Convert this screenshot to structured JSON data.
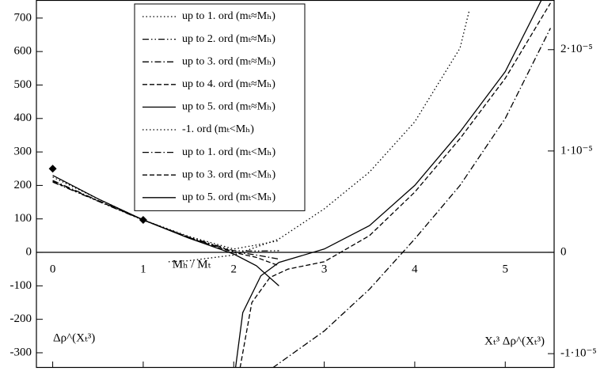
{
  "chart_data": {
    "type": "line",
    "xlim": [
      -0.18,
      5.54
    ],
    "ylim": [
      -345,
      754
    ],
    "xticks": [
      0,
      1,
      2,
      3,
      4,
      5
    ],
    "yticks": [
      -300,
      -200,
      -100,
      0,
      100,
      200,
      300,
      400,
      500,
      600,
      700
    ],
    "y2lim": [
      -1.14e-05,
      2.49e-05
    ],
    "y2ticks": [
      {
        "value": -1e-05,
        "label": "-1·10⁻⁵"
      },
      0,
      {
        "value": 1e-05,
        "label": "1·10⁻⁵"
      },
      {
        "value": 2e-05,
        "label": "2·10⁻⁵"
      }
    ],
    "annotations": [
      "Mₕ / Mₜ",
      "Δρ^(Xₜ³)",
      "Xₜ³ Δρ^(Xₜ³)"
    ],
    "legend": "upper-center",
    "series": [
      {
        "name": "up to 1. ord (mₜ≈Mₕ)",
        "color": "#000000",
        "dash": "dotted",
        "x": [
          0,
          0.5,
          1,
          1.5,
          2,
          2.25,
          2.5
        ],
        "values": [
          225,
          160,
          97,
          48,
          10,
          22,
          35
        ]
      },
      {
        "name": "up to 2. ord (mₜ≈Mₕ)",
        "color": "#000000",
        "dash": "dash-dot-dot",
        "x": [
          0,
          0.5,
          1,
          1.5,
          2,
          2.25,
          2.5
        ],
        "values": [
          210,
          153,
          96,
          46,
          5,
          4,
          5
        ]
      },
      {
        "name": "up to 3. ord (mₜ≈Mₕ)",
        "color": "#000000",
        "dash": "dash-dot",
        "x": [
          0,
          0.5,
          1,
          1.5,
          2,
          2.25,
          2.5
        ],
        "values": [
          215,
          155,
          97,
          45,
          2,
          -8,
          -20
        ]
      },
      {
        "name": "up to 4. ord (mₜ≈Mₕ)",
        "color": "#000000",
        "dash": "dashed",
        "x": [
          0,
          0.5,
          1,
          1.5,
          2,
          2.25,
          2.5
        ],
        "values": [
          212,
          154,
          97,
          44,
          0,
          -15,
          -40
        ]
      },
      {
        "name": "up to 5. ord (mₜ≈Mₕ)",
        "color": "#000000",
        "dash": "solid",
        "x": [
          0,
          0.5,
          1,
          1.5,
          2,
          2.25,
          2.5
        ],
        "values": [
          230,
          160,
          97,
          43,
          -5,
          -40,
          -100
        ]
      },
      {
        "name": "-1. ord (mₜ<Mₕ)",
        "color": "#000000",
        "dash": "dotted",
        "x": [
          1.28,
          1.5,
          2,
          2.5,
          3,
          3.5,
          4,
          4.5,
          4.6
        ],
        "values": [
          -28,
          -25,
          -8,
          40,
          130,
          240,
          390,
          610,
          720
        ]
      },
      {
        "name": "up to 1. ord (mₜ<Mₕ)",
        "color": "#000000",
        "dash": "dash-dot",
        "x": [
          2.43,
          3,
          3.5,
          4,
          4.5,
          5,
          5.5
        ],
        "values": [
          -345,
          -235,
          -110,
          40,
          200,
          400,
          670
        ]
      },
      {
        "name": "up to 3. ord (mₜ<Mₕ)",
        "color": "#000000",
        "dash": "dashed",
        "x": [
          2.07,
          2.2,
          2.4,
          2.6,
          3,
          3.5,
          4,
          4.5,
          5,
          5.5
        ],
        "values": [
          -345,
          -150,
          -75,
          -50,
          -28,
          50,
          180,
          340,
          520,
          745
        ]
      },
      {
        "name": "up to 5. ord (mₜ<Mₕ)",
        "color": "#000000",
        "dash": "solid",
        "x": [
          2.02,
          2.1,
          2.3,
          2.5,
          3,
          3.5,
          4,
          4.5,
          5,
          5.4
        ],
        "values": [
          -345,
          -180,
          -70,
          -30,
          10,
          80,
          200,
          360,
          540,
          754
        ]
      }
    ],
    "points": {
      "x": [
        0,
        1
      ],
      "values": [
        250,
        97
      ],
      "color": "#000000"
    }
  }
}
